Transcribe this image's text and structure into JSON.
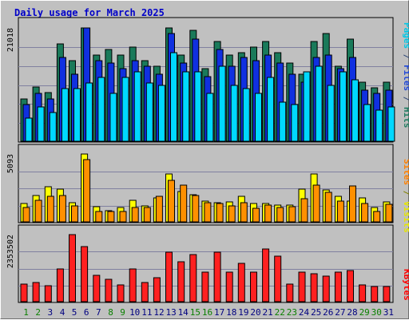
{
  "chart_data": {
    "type": "bar",
    "title": "Daily usage for March 2025",
    "x": {
      "labels": [
        "1",
        "2",
        "3",
        "4",
        "5",
        "6",
        "7",
        "8",
        "9",
        "10",
        "11",
        "12",
        "13",
        "14",
        "15",
        "16",
        "17",
        "18",
        "19",
        "20",
        "21",
        "22",
        "23",
        "24",
        "25",
        "26",
        "27",
        "28",
        "29",
        "30",
        "31"
      ],
      "weekend_days": [
        "1",
        "2",
        "8",
        "9",
        "15",
        "16",
        "22",
        "23",
        "29",
        "30"
      ]
    },
    "panels": [
      {
        "id": "top",
        "ymax": 21018,
        "ymax_label": "21018",
        "side_labels": [
          {
            "text": "Pages",
            "color": "#00c8e6"
          },
          {
            "text": " / ",
            "color": "#304878"
          },
          {
            "text": "Files",
            "color": "#2048d8"
          },
          {
            "text": " / ",
            "color": "#304878"
          },
          {
            "text": "Hits",
            "color": "#1f7c60"
          }
        ],
        "series": [
          {
            "name": "Hits",
            "color": "#1a7a5a",
            "values": [
              7910,
              10160,
              9160,
              18010,
              15010,
              21018,
              16010,
              17010,
              16010,
              17510,
              15010,
              14010,
              21018,
              16010,
              20510,
              13510,
              18510,
              16010,
              16510,
              17510,
              18510,
              16510,
              14510,
              12510,
              18510,
              20010,
              14010,
              19010,
              11010,
              10010,
              11010
            ]
          },
          {
            "name": "Files",
            "color": "#1030e0",
            "values": [
              6910,
              8910,
              7910,
              15510,
              12510,
              21018,
              15010,
              14510,
              13510,
              15010,
              14010,
              12510,
              20010,
              14510,
              19010,
              12010,
              17010,
              14010,
              15510,
              15010,
              16010,
              14510,
              12510,
              11010,
              15510,
              16010,
              13510,
              15510,
              9510,
              9010,
              9510
            ]
          },
          {
            "name": "Pages",
            "color": "#00d8ff",
            "values": [
              4410,
              6410,
              5410,
              9910,
              9910,
              10910,
              11910,
              8910,
              11910,
              12910,
              10910,
              10410,
              16510,
              12910,
              12910,
              8910,
              13910,
              10410,
              9910,
              8910,
              11910,
              7410,
              6910,
              12910,
              13910,
              10410,
              12910,
              11410,
              6910,
              5910,
              6410
            ]
          }
        ]
      },
      {
        "id": "mid",
        "ymax": 5093,
        "ymax_label": "5093",
        "side_labels": [
          {
            "text": "Sites",
            "color": "#ff8000"
          },
          {
            "text": " / ",
            "color": "#808000"
          },
          {
            "text": "Visits",
            "color": "#e6e600"
          }
        ],
        "series": [
          {
            "name": "Visits",
            "color": "#ffff00",
            "values": [
              1450,
              2000,
              2650,
              2500,
              1500,
              5093,
              1200,
              900,
              1100,
              1650,
              1250,
              1850,
              3600,
              2300,
              2100,
              1600,
              1500,
              1550,
              1950,
              1450,
              1400,
              1300,
              1300,
              2500,
              3600,
              2400,
              1950,
              1600,
              1850,
              1150,
              1550
            ]
          },
          {
            "name": "Sites",
            "color": "#ff9000",
            "values": [
              1100,
              1650,
              1950,
              2000,
              1250,
              4700,
              850,
              850,
              800,
              1150,
              1150,
              1950,
              3150,
              2800,
              2000,
              1500,
              1450,
              1250,
              1500,
              1050,
              1300,
              1100,
              1200,
              1750,
              2800,
              2250,
              1600,
              2750,
              1450,
              850,
              1350
            ]
          }
        ]
      },
      {
        "id": "bot",
        "ymax": 2353502,
        "ymax_label": "2353502",
        "side_labels": [
          {
            "text": "KBytes",
            "color": "#ff0000"
          }
        ],
        "series": [
          {
            "name": "KBytes",
            "color": "#ff2020",
            "values": [
              650000,
              700000,
              580000,
              1150000,
              2353502,
              1950000,
              950000,
              800000,
              600000,
              1150000,
              700000,
              850000,
              1750000,
              1400000,
              1650000,
              1050000,
              1750000,
              1050000,
              1350000,
              1050000,
              1850000,
              1600000,
              650000,
              1050000,
              1000000,
              900000,
              1050000,
              1100000,
              600000,
              550000,
              550000
            ]
          }
        ]
      }
    ],
    "grid": true,
    "colors": {
      "background": "#c0c0c0",
      "grid": "#8080a0",
      "title": "#0000c8",
      "axis_labels": "#000000",
      "weekday_label": "#000080",
      "weekend_label": "#0a8000"
    }
  }
}
